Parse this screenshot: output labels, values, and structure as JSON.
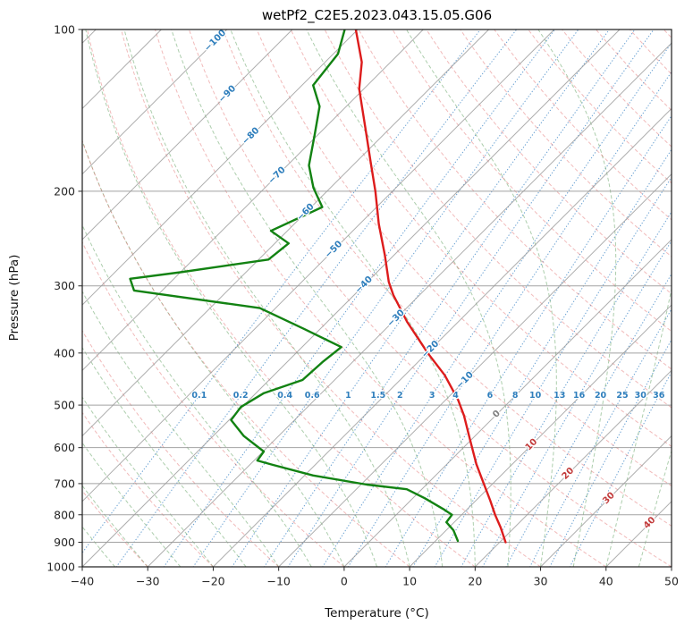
{
  "title": "wetPf2_C2E5.2023.043.15.05.G06",
  "axes": {
    "x_label": "Temperature (°C)",
    "y_label": "Pressure (hPa)",
    "x_range": [
      -40,
      50
    ],
    "p_range": [
      100,
      1000
    ],
    "x_ticks": [
      {
        "v": -40,
        "label": "−40"
      },
      {
        "v": -30,
        "label": "−30"
      },
      {
        "v": -20,
        "label": "−20"
      },
      {
        "v": -10,
        "label": "−10"
      },
      {
        "v": 0,
        "label": "0"
      },
      {
        "v": 10,
        "label": "10"
      },
      {
        "v": 20,
        "label": "20"
      },
      {
        "v": 30,
        "label": "30"
      },
      {
        "v": 40,
        "label": "40"
      },
      {
        "v": 50,
        "label": "50"
      }
    ],
    "y_ticks": [
      {
        "v": 100,
        "label": "100"
      },
      {
        "v": 200,
        "label": "200"
      },
      {
        "v": 300,
        "label": "300"
      },
      {
        "v": 400,
        "label": "400"
      },
      {
        "v": 500,
        "label": "500"
      },
      {
        "v": 600,
        "label": "600"
      },
      {
        "v": 700,
        "label": "700"
      },
      {
        "v": 800,
        "label": "800"
      },
      {
        "v": 900,
        "label": "900"
      },
      {
        "v": 1000,
        "label": "1000"
      }
    ]
  },
  "chart_data": {
    "type": "line",
    "diagram": "skew-T log-p atmospheric sounding",
    "title": "wetPf2_C2E5.2023.043.15.05.G06",
    "xlabel": "Temperature (°C)",
    "ylabel": "Pressure (hPa)",
    "x_axis_note": "temperature axis skewed 45°, −40 to 50 °C",
    "y_axis_note": "log pressure scale, 1000 hPa (bottom) to 100 hPa (top)",
    "series": [
      {
        "name": "temperature",
        "color": "#dd1c1c",
        "points_p_hPa_T_C": [
          [
            100,
            -80.3
          ],
          [
            115,
            -74.4
          ],
          [
            129,
            -70.7
          ],
          [
            154,
            -63.4
          ],
          [
            176,
            -57.9
          ],
          [
            200,
            -52.6
          ],
          [
            230,
            -47.1
          ],
          [
            263,
            -41.4
          ],
          [
            295,
            -36.7
          ],
          [
            312,
            -34.0
          ],
          [
            350,
            -27.8
          ],
          [
            400,
            -19.9
          ],
          [
            440,
            -13.9
          ],
          [
            489,
            -8.1
          ],
          [
            523,
            -4.8
          ],
          [
            576,
            -0.5
          ],
          [
            644,
            4.5
          ],
          [
            700,
            8.6
          ],
          [
            753,
            12.2
          ],
          [
            800,
            15.1
          ],
          [
            845,
            17.9
          ],
          [
            900,
            20.9
          ]
        ]
      },
      {
        "name": "dewpoint",
        "color": "#128212",
        "points_p_hPa_T_C": [
          [
            100,
            -82.0
          ],
          [
            111,
            -79.3
          ],
          [
            127,
            -78.3
          ],
          [
            139,
            -74.1
          ],
          [
            157,
            -70.5
          ],
          [
            179,
            -66.7
          ],
          [
            197,
            -62.6
          ],
          [
            214,
            -58.3
          ],
          [
            237,
            -62.5
          ],
          [
            250,
            -57.9
          ],
          [
            268,
            -58.5
          ],
          [
            283,
            -70.0
          ],
          [
            291,
            -76.7
          ],
          [
            306,
            -74.3
          ],
          [
            330,
            -52.4
          ],
          [
            361,
            -42.4
          ],
          [
            390,
            -34.0
          ],
          [
            416,
            -34.6
          ],
          [
            449,
            -34.9
          ],
          [
            475,
            -38.8
          ],
          [
            504,
            -40.2
          ],
          [
            533,
            -39.7
          ],
          [
            571,
            -35.3
          ],
          [
            610,
            -29.9
          ],
          [
            634,
            -29.5
          ],
          [
            646,
            -26.5
          ],
          [
            676,
            -18.7
          ],
          [
            703,
            -9.1
          ],
          [
            717,
            -2.3
          ],
          [
            745,
            1.8
          ],
          [
            783,
            6.6
          ],
          [
            800,
            8.5
          ],
          [
            826,
            8.8
          ],
          [
            855,
            11.1
          ],
          [
            895,
            13.4
          ]
        ]
      }
    ],
    "background_lines": {
      "isotherms_C": {
        "min": -120,
        "max": 50,
        "step": 10
      },
      "dry_adiabats_theta_C": {
        "min": -40,
        "max": 200,
        "step": 10
      },
      "moist_adiabats_C": {
        "min": -40,
        "max": 45,
        "step": 5
      },
      "mixing_ratio_g_kg": [
        0.1,
        0.2,
        0.4,
        0.6,
        1,
        1.5,
        2,
        3,
        4,
        6,
        8,
        10,
        13,
        16,
        20,
        25,
        30,
        36
      ]
    },
    "isotherm_labels": [
      {
        "text": "−100",
        "value": -100,
        "p": 105
      },
      {
        "text": "−90",
        "value": -90,
        "p": 132
      },
      {
        "text": "−80",
        "value": -80,
        "p": 158
      },
      {
        "text": "−70",
        "value": -70,
        "p": 187
      },
      {
        "text": "−60",
        "value": -60,
        "p": 219
      },
      {
        "text": "−50",
        "value": -50,
        "p": 257
      },
      {
        "text": "−40",
        "value": -40,
        "p": 299
      },
      {
        "text": "−30",
        "value": -30,
        "p": 345
      },
      {
        "text": "−20",
        "value": -20,
        "p": 394
      },
      {
        "text": "−10",
        "value": -10,
        "p": 450
      },
      {
        "text": "0",
        "value": 0,
        "p": 520
      },
      {
        "text": "10",
        "value": 10,
        "p": 593
      },
      {
        "text": "20",
        "value": 20,
        "p": 671
      },
      {
        "text": "30",
        "value": 30,
        "p": 746
      },
      {
        "text": "40",
        "value": 40,
        "p": 829
      }
    ],
    "mixing_ratio_labels": {
      "pressure": 480
    }
  },
  "style": {
    "grid": "#999999",
    "dry_adiabat": "#e06666",
    "moist_adiabat": "#6aa56a",
    "mixing_ratio": "#3d85c6",
    "temperature_line": "#dd1c1c",
    "dewpoint_line": "#128212",
    "label_negative": "#2e7ebc",
    "label_zero": "#7f7f7f",
    "label_positive": "#c23b3b",
    "mixing_label": "#2e7ebc",
    "tick": "#262626",
    "border": "#1a1a1a"
  }
}
